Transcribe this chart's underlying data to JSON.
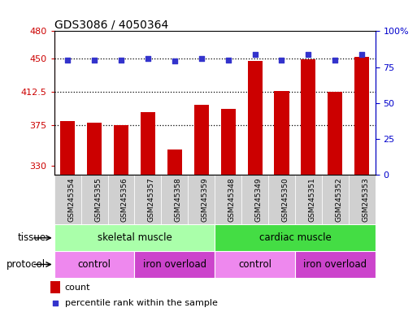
{
  "title": "GDS3086 / 4050364",
  "samples": [
    "GSM245354",
    "GSM245355",
    "GSM245356",
    "GSM245357",
    "GSM245358",
    "GSM245359",
    "GSM245348",
    "GSM245349",
    "GSM245350",
    "GSM245351",
    "GSM245352",
    "GSM245353"
  ],
  "counts": [
    380,
    378,
    375,
    390,
    348,
    398,
    393,
    447,
    413,
    449,
    412,
    451
  ],
  "percentile_ranks": [
    80,
    80,
    80,
    81,
    79,
    81,
    80,
    84,
    80,
    84,
    80,
    84
  ],
  "ylim_left": [
    320,
    480
  ],
  "yticks_left": [
    330,
    375,
    412.5,
    450,
    480
  ],
  "ylim_right": [
    0,
    100
  ],
  "yticks_right": [
    0,
    25,
    50,
    75,
    100
  ],
  "bar_color": "#cc0000",
  "dot_color": "#3333cc",
  "xticklabel_bg": "#d0d0d0",
  "tissue_groups": [
    {
      "label": "skeletal muscle",
      "start": 0,
      "end": 6,
      "color": "#aaffaa"
    },
    {
      "label": "cardiac muscle",
      "start": 6,
      "end": 12,
      "color": "#44dd44"
    }
  ],
  "protocol_groups": [
    {
      "label": "control",
      "start": 0,
      "end": 3,
      "color": "#ee88ee"
    },
    {
      "label": "iron overload",
      "start": 3,
      "end": 6,
      "color": "#cc44cc"
    },
    {
      "label": "control",
      "start": 6,
      "end": 9,
      "color": "#ee88ee"
    },
    {
      "label": "iron overload",
      "start": 9,
      "end": 12,
      "color": "#cc44cc"
    }
  ],
  "legend_count_color": "#cc0000",
  "legend_dot_color": "#3333cc",
  "tissue_label": "tissue",
  "protocol_label": "protocol",
  "dotted_lines": [
    375,
    412.5,
    450
  ],
  "bar_width": 0.55
}
